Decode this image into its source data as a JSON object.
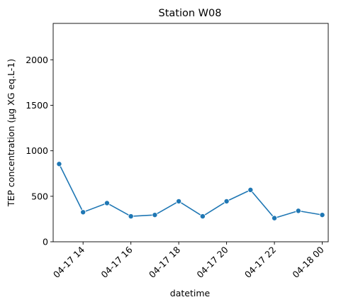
{
  "chart_data": {
    "type": "line",
    "title": "Station W08",
    "xlabel": "datetime",
    "ylabel": "TEP concentration (µg XG eq.L-1)",
    "x_type": "datetime",
    "xlim": [
      "2024-04-17T12:45",
      "2024-04-18T00:15"
    ],
    "ylim": [
      0,
      2400
    ],
    "x_ticks": [
      {
        "value": "2024-04-17T14:00",
        "label": "04-17 14"
      },
      {
        "value": "2024-04-17T16:00",
        "label": "04-17 16"
      },
      {
        "value": "2024-04-17T18:00",
        "label": "04-17 18"
      },
      {
        "value": "2024-04-17T20:00",
        "label": "04-17 20"
      },
      {
        "value": "2024-04-17T22:00",
        "label": "04-17 22"
      },
      {
        "value": "2024-04-18T00:00",
        "label": "04-18 00"
      }
    ],
    "y_ticks": [
      0,
      500,
      1000,
      1500,
      2000
    ],
    "grid": false,
    "legend": "none",
    "marker": "circle",
    "series": [
      {
        "color": "#1f77b4",
        "x": [
          "2024-04-17T13:00",
          "2024-04-17T14:00",
          "2024-04-17T15:00",
          "2024-04-17T16:00",
          "2024-04-17T17:00",
          "2024-04-17T18:00",
          "2024-04-17T19:00",
          "2024-04-17T20:00",
          "2024-04-17T21:00",
          "2024-04-17T22:00",
          "2024-04-17T23:00",
          "2024-04-18T00:00"
        ],
        "values": [
          855,
          325,
          425,
          280,
          295,
          445,
          280,
          445,
          570,
          260,
          340,
          295
        ]
      }
    ]
  }
}
